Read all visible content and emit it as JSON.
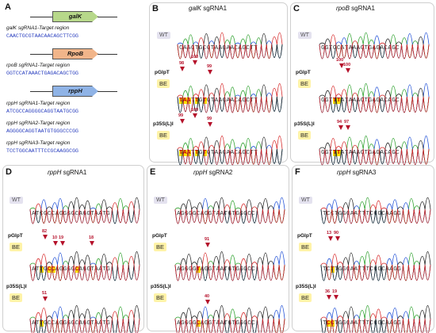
{
  "panels": {
    "A": {
      "label": "A",
      "genes": [
        "galK",
        "RpoB",
        "rppH"
      ],
      "targets": [
        {
          "label": "galK sgRNA1-Target region",
          "seq": "CAACTGCGTAACAACAGCTTCGG"
        },
        {
          "label": "rpoB sgRNA1-Target region",
          "seq": "GGTCCATAAACTGAGACAGCTGG"
        },
        {
          "label": "rppH sgRNA1-Target region",
          "seq": "ATCGCCAGGGGCAGGTAATGCGG"
        },
        {
          "label": "rppH sgRNA2-Target region",
          "seq": "AGGGGCAGGTAATGTGGGCCCGG"
        },
        {
          "label": "rppH sgRNA3-Target region",
          "seq": "TCCTGGCAATTTCCGCAAGGCGG"
        }
      ]
    },
    "B": {
      "label": "B",
      "gene": "galK",
      "title_suffix": " sgRNA1",
      "wt_seq": "CAACTGCGTAACAACAGCTT",
      "be1_seq": "TAATTGTGTAACAACAGCTT",
      "be2_seq": "TAATTGTGTAACAACAGCTT",
      "m1": [
        "98",
        "100",
        "99"
      ],
      "m2": [
        "99",
        "100",
        "99"
      ]
    },
    "C": {
      "label": "C",
      "gene": "rpoB",
      "title_suffix": " sgRNA1",
      "wt_seq": "GGTCCATAAACTGAGACAGC",
      "be1_seq": "GGTTTATAAACTGAGACAGC",
      "be2_seq": "GGTTTATAAACTGAGACAGC",
      "m1": [
        "100",
        "100"
      ],
      "m2": [
        "94",
        "97"
      ]
    },
    "D": {
      "label": "D",
      "gene": "rppH",
      "title_suffix": " sgRNA1",
      "wt_seq": "ATCGCCAGGGGCAGGTAATG",
      "be1_seq": "ATTGCCAGGGGCAGGTAATG",
      "be2_seq": "ATTGCCAGGGGCAGGTAATG",
      "m1": [
        "82",
        "10",
        "19",
        "18"
      ],
      "m2": [
        "51"
      ]
    },
    "E": {
      "label": "E",
      "gene": "rppH",
      "title_suffix": " sgRNA2",
      "wt_seq": "AGGGGCAGGTAATGTGGGCC",
      "be1_seq": "AGGGGTAGGTAATGTGGGCC",
      "be2_seq": "AGGGGCAGGTAATGTGGGCC",
      "m1": [
        "91"
      ],
      "m2": [
        "40"
      ]
    },
    "F": {
      "label": "F",
      "gene": "rppH",
      "title_suffix": " sgRNA3",
      "wt_seq": "TCCTGGCAATTTCCGCAAGG",
      "be1_seq": "TCTTGGCAATTTCCGCAAGG",
      "be2_seq": "TCCTGGCAATTTCCGCAAGG",
      "m1": [
        "13",
        "90"
      ],
      "m2": [
        "36",
        "19"
      ]
    }
  },
  "tags": {
    "wt": "WT",
    "pglpt": "pGlpT",
    "p35s": "p35S(L)I",
    "be": "BE"
  },
  "colors": {
    "A": "#2ca02c",
    "C": "#1f4fd6",
    "G": "#222222",
    "T": "#d62728",
    "highlight": "#ffe100",
    "marker": "#b5102a"
  }
}
